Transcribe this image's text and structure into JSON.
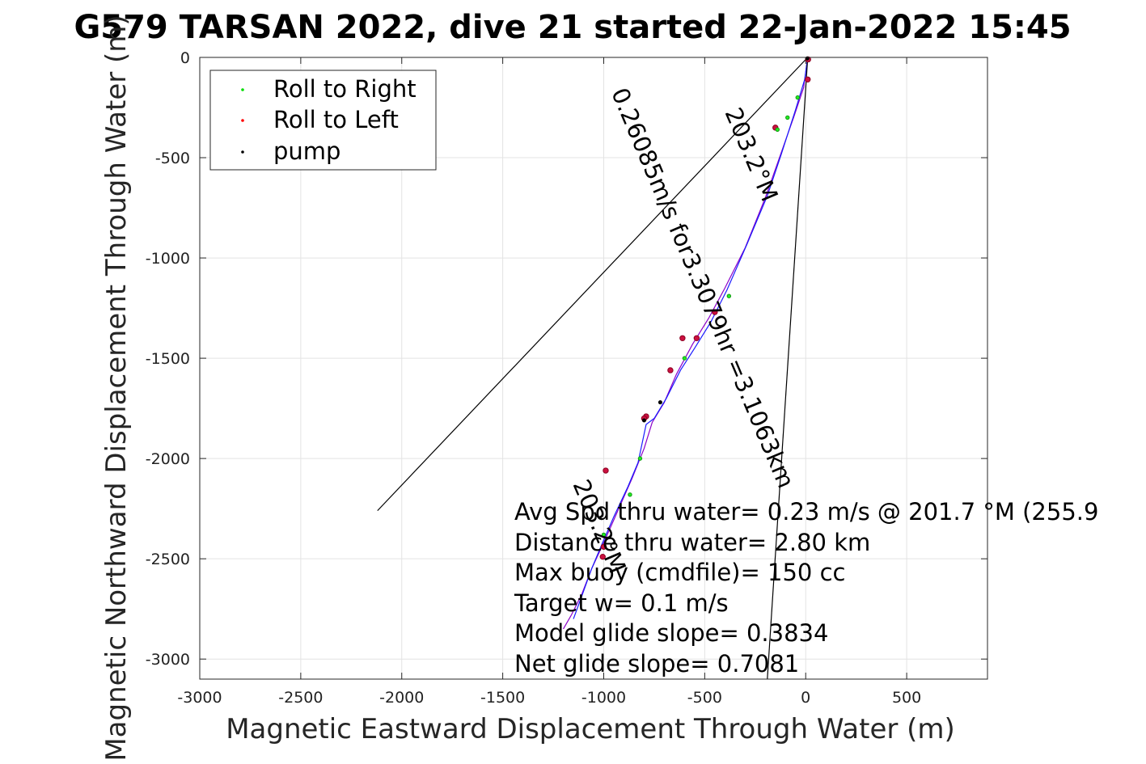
{
  "chart_data": {
    "type": "line",
    "title": "G579 TARSAN 2022, dive 21 started 22-Jan-2022 15:45",
    "xlabel": "Magnetic Eastward Displacement Through Water (m)",
    "ylabel": "Magnetic Northward Displacement Through Water (m)",
    "xlim": [
      -3000,
      900
    ],
    "ylim": [
      -3100,
      0
    ],
    "xticks": [
      -3000,
      -2500,
      -2000,
      -1500,
      -1000,
      -500,
      0,
      500
    ],
    "yticks": [
      0,
      -500,
      -1000,
      -1500,
      -2000,
      -2500,
      -3000
    ],
    "grid": true,
    "legend_position": "top-left",
    "legend": [
      {
        "label": "Roll to Right",
        "color": "#00dd00"
      },
      {
        "label": "Roll to Left",
        "color": "#ff0000"
      },
      {
        "label": "pump",
        "color": "#000000"
      }
    ],
    "series": [
      {
        "name": "",
        "color": "#8b00c8",
        "x": [
          10,
          -10,
          -60,
          -130,
          -200,
          -300,
          -400,
          -480,
          -560,
          -640,
          -700,
          -760,
          -800,
          -860,
          -930,
          -1000,
          -1060,
          -1110,
          -1160,
          -1200
        ],
        "y": [
          0,
          -150,
          -300,
          -500,
          -700,
          -950,
          -1150,
          -1300,
          -1430,
          -1580,
          -1720,
          -1820,
          -1950,
          -2100,
          -2260,
          -2420,
          -2550,
          -2680,
          -2780,
          -2850
        ]
      },
      {
        "name": "",
        "color": "#1a1aff",
        "x": [
          10,
          -5,
          -50,
          -120,
          -190,
          -290,
          -390,
          -470,
          -550,
          -620,
          -690,
          -750,
          -790,
          -830,
          -880,
          -950,
          -1010,
          -1060,
          -1110,
          -1150
        ],
        "y": [
          0,
          -110,
          -260,
          -480,
          -690,
          -930,
          -1160,
          -1320,
          -1450,
          -1560,
          -1700,
          -1800,
          -1830,
          -2020,
          -2140,
          -2290,
          -2430,
          -2550,
          -2690,
          -2800
        ]
      },
      {
        "name": "",
        "color": "#000000",
        "x": [
          10,
          -2120
        ],
        "y": [
          0,
          -2260
        ]
      },
      {
        "name": "",
        "color": "#000000",
        "x": [
          10,
          -190
        ],
        "y": [
          0,
          -3100
        ]
      }
    ],
    "markers": {
      "roll_right": {
        "x": [
          -40,
          -90,
          -140,
          -380,
          -600,
          -820,
          -870,
          -1000
        ],
        "y": [
          -200,
          -300,
          -360,
          -1190,
          -1500,
          -2000,
          -2180,
          -2380
        ]
      },
      "roll_left": {
        "x": [
          12,
          10,
          -150,
          -450,
          -540,
          -610,
          -670,
          -790,
          -800,
          -990,
          -1000,
          -1005
        ],
        "y": [
          -10,
          -110,
          -350,
          -1270,
          -1400,
          -1400,
          -1560,
          -1790,
          -1800,
          -2060,
          -2440,
          -2490
        ]
      },
      "pump": {
        "x": [
          8,
          -720,
          -800
        ],
        "y": [
          -5,
          -1720,
          -1810
        ]
      }
    },
    "info_lines": [
      "Avg Spd thru water=  0.23 m/s @ 201.7 °M (255.9",
      "Distance thru water=  2.80 km",
      "Max buoy (cmdfile)= 150 cc",
      "Target w= 0.1 m/s",
      "Model glide slope= 0.3834",
      "Net glide slope= 0.7081"
    ],
    "rotated_annotations": [
      "0.26085m/s for3.3079hr =3.1063km",
      "203.2°M",
      "203.2°M"
    ]
  }
}
